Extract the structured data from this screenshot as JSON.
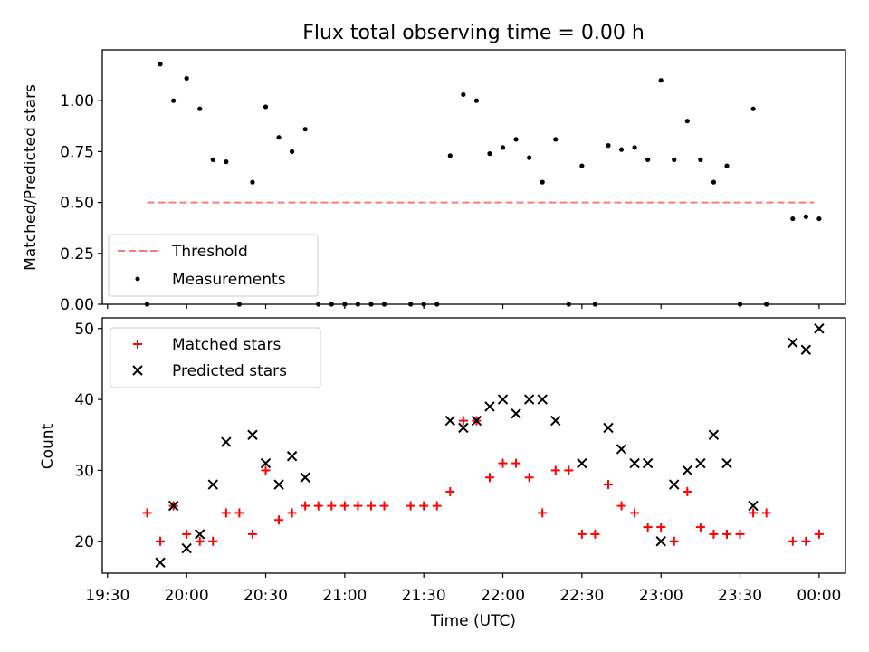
{
  "figure": {
    "title": "Flux total observing time = 0.00 h"
  },
  "chart_data": [
    {
      "type": "scatter",
      "panel": "top",
      "title": "Flux total observing time = 0.00 h",
      "xlabel": "",
      "ylabel": "Matched/Predicted stars",
      "xlim": [
        "19:28",
        "00:10"
      ],
      "ylim": [
        0,
        1.25
      ],
      "yticks": [
        0.0,
        0.25,
        0.5,
        0.75,
        1.0
      ],
      "ytick_labels": [
        "0.00",
        "0.25",
        "0.50",
        "0.75",
        "1.00"
      ],
      "legend_position": "lower-left",
      "threshold": {
        "name": "Threshold",
        "value": 0.5,
        "x_start": "19:45",
        "x_end": "23:58",
        "color": "#ff7777",
        "style": "dashed"
      },
      "series": [
        {
          "name": "Measurements",
          "color": "#000000",
          "marker": "dot",
          "points": [
            [
              "19:45",
              0.0
            ],
            [
              "19:50",
              1.18
            ],
            [
              "19:55",
              1.0
            ],
            [
              "20:00",
              1.11
            ],
            [
              "20:05",
              0.96
            ],
            [
              "20:10",
              0.71
            ],
            [
              "20:15",
              0.7
            ],
            [
              "20:20",
              0.0
            ],
            [
              "20:25",
              0.6
            ],
            [
              "20:30",
              0.97
            ],
            [
              "20:35",
              0.82
            ],
            [
              "20:40",
              0.75
            ],
            [
              "20:45",
              0.86
            ],
            [
              "20:50",
              0.0
            ],
            [
              "20:55",
              0.0
            ],
            [
              "21:00",
              0.0
            ],
            [
              "21:05",
              0.0
            ],
            [
              "21:10",
              0.0
            ],
            [
              "21:15",
              0.0
            ],
            [
              "21:25",
              0.0
            ],
            [
              "21:30",
              0.0
            ],
            [
              "21:35",
              0.0
            ],
            [
              "21:40",
              0.73
            ],
            [
              "21:45",
              1.03
            ],
            [
              "21:50",
              1.0
            ],
            [
              "21:55",
              0.74
            ],
            [
              "22:00",
              0.77
            ],
            [
              "22:05",
              0.81
            ],
            [
              "22:10",
              0.72
            ],
            [
              "22:15",
              0.6
            ],
            [
              "22:20",
              0.81
            ],
            [
              "22:25",
              0.0
            ],
            [
              "22:30",
              0.68
            ],
            [
              "22:35",
              0.0
            ],
            [
              "22:40",
              0.78
            ],
            [
              "22:45",
              0.76
            ],
            [
              "22:50",
              0.77
            ],
            [
              "22:55",
              0.71
            ],
            [
              "23:00",
              1.1
            ],
            [
              "23:05",
              0.71
            ],
            [
              "23:10",
              0.9
            ],
            [
              "23:15",
              0.71
            ],
            [
              "23:20",
              0.6
            ],
            [
              "23:25",
              0.68
            ],
            [
              "23:30",
              0.0
            ],
            [
              "23:35",
              0.96
            ],
            [
              "23:40",
              0.0
            ],
            [
              "23:50",
              0.42
            ],
            [
              "23:55",
              0.43
            ],
            [
              "00:00",
              0.42
            ]
          ]
        }
      ]
    },
    {
      "type": "scatter",
      "panel": "bottom",
      "xlabel": "Time (UTC)",
      "ylabel": "Count",
      "xlim": [
        "19:28",
        "00:10"
      ],
      "ylim": [
        15.5,
        51.5
      ],
      "yticks": [
        20,
        30,
        40,
        50
      ],
      "ytick_labels": [
        "20",
        "30",
        "40",
        "50"
      ],
      "xticks": [
        "19:30",
        "20:00",
        "20:30",
        "21:00",
        "21:30",
        "22:00",
        "22:30",
        "23:00",
        "23:30",
        "00:00"
      ],
      "legend_position": "upper-left",
      "series": [
        {
          "name": "Matched stars",
          "color": "#ff0000",
          "marker": "plus",
          "points": [
            [
              "19:45",
              24
            ],
            [
              "19:50",
              20
            ],
            [
              "19:55",
              25
            ],
            [
              "20:00",
              21
            ],
            [
              "20:05",
              20
            ],
            [
              "20:10",
              20
            ],
            [
              "20:15",
              24
            ],
            [
              "20:20",
              24
            ],
            [
              "20:25",
              21
            ],
            [
              "20:30",
              30
            ],
            [
              "20:35",
              23
            ],
            [
              "20:40",
              24
            ],
            [
              "20:45",
              25
            ],
            [
              "20:50",
              25
            ],
            [
              "20:55",
              25
            ],
            [
              "21:00",
              25
            ],
            [
              "21:05",
              25
            ],
            [
              "21:10",
              25
            ],
            [
              "21:15",
              25
            ],
            [
              "21:25",
              25
            ],
            [
              "21:30",
              25
            ],
            [
              "21:35",
              25
            ],
            [
              "21:40",
              27
            ],
            [
              "21:45",
              37
            ],
            [
              "21:50",
              37
            ],
            [
              "21:55",
              29
            ],
            [
              "22:00",
              31
            ],
            [
              "22:05",
              31
            ],
            [
              "22:10",
              29
            ],
            [
              "22:15",
              24
            ],
            [
              "22:20",
              30
            ],
            [
              "22:25",
              30
            ],
            [
              "22:30",
              21
            ],
            [
              "22:35",
              21
            ],
            [
              "22:40",
              28
            ],
            [
              "22:45",
              25
            ],
            [
              "22:50",
              24
            ],
            [
              "22:55",
              22
            ],
            [
              "23:00",
              22
            ],
            [
              "23:05",
              20
            ],
            [
              "23:10",
              27
            ],
            [
              "23:15",
              22
            ],
            [
              "23:20",
              21
            ],
            [
              "23:25",
              21
            ],
            [
              "23:30",
              21
            ],
            [
              "23:35",
              24
            ],
            [
              "23:40",
              24
            ],
            [
              "23:50",
              20
            ],
            [
              "23:55",
              20
            ],
            [
              "00:00",
              21
            ]
          ]
        },
        {
          "name": "Predicted stars",
          "color": "#000000",
          "marker": "x",
          "points": [
            [
              "19:50",
              17
            ],
            [
              "19:55",
              25
            ],
            [
              "20:00",
              19
            ],
            [
              "20:05",
              21
            ],
            [
              "20:10",
              28
            ],
            [
              "20:15",
              34
            ],
            [
              "20:25",
              35
            ],
            [
              "20:30",
              31
            ],
            [
              "20:35",
              28
            ],
            [
              "20:40",
              32
            ],
            [
              "20:45",
              29
            ],
            [
              "21:40",
              37
            ],
            [
              "21:45",
              36
            ],
            [
              "21:50",
              37
            ],
            [
              "21:55",
              39
            ],
            [
              "22:00",
              40
            ],
            [
              "22:05",
              38
            ],
            [
              "22:10",
              40
            ],
            [
              "22:15",
              40
            ],
            [
              "22:20",
              37
            ],
            [
              "22:30",
              31
            ],
            [
              "22:40",
              36
            ],
            [
              "22:45",
              33
            ],
            [
              "22:50",
              31
            ],
            [
              "22:55",
              31
            ],
            [
              "23:00",
              20
            ],
            [
              "23:05",
              28
            ],
            [
              "23:10",
              30
            ],
            [
              "23:15",
              31
            ],
            [
              "23:20",
              35
            ],
            [
              "23:25",
              31
            ],
            [
              "23:35",
              25
            ],
            [
              "23:50",
              48
            ],
            [
              "23:55",
              47
            ],
            [
              "00:00",
              50
            ]
          ]
        }
      ]
    }
  ]
}
